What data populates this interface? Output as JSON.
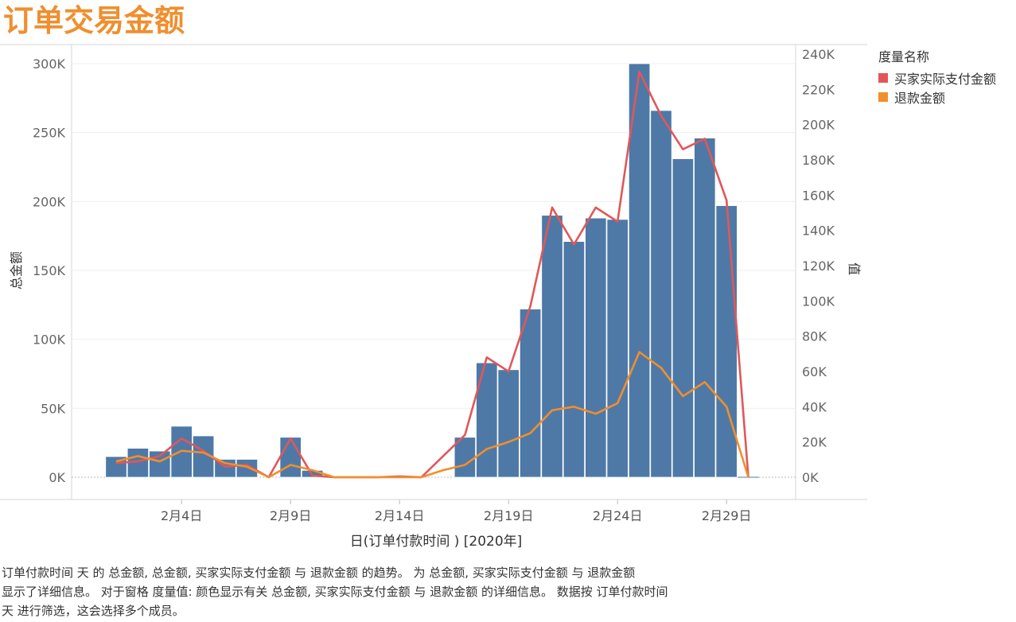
{
  "title": "订单交易金额",
  "chart_data": {
    "type": "bar+line",
    "title": "订单交易金额",
    "xlabel": "日(订单付款时间 ) [2020年]",
    "ylabel_left": "总金额",
    "ylabel_right": "值",
    "xticks": [
      {
        "day": 4,
        "label": "2月4日"
      },
      {
        "day": 9,
        "label": "2月9日"
      },
      {
        "day": 14,
        "label": "2月14日"
      },
      {
        "day": 19,
        "label": "2月19日"
      },
      {
        "day": 24,
        "label": "2月24日"
      },
      {
        "day": 29,
        "label": "2月29日"
      }
    ],
    "left_axis": {
      "min": 0,
      "max": 300000,
      "ticks": [
        0,
        50000,
        100000,
        150000,
        200000,
        250000,
        300000
      ],
      "tick_labels": [
        "0K",
        "50K",
        "100K",
        "150K",
        "200K",
        "250K",
        "300K"
      ]
    },
    "right_axis": {
      "min": 0,
      "max": 240000,
      "ticks": [
        0,
        20000,
        40000,
        60000,
        80000,
        100000,
        120000,
        140000,
        160000,
        180000,
        200000,
        220000,
        240000
      ],
      "tick_labels": [
        "0K",
        "20K",
        "40K",
        "60K",
        "80K",
        "100K",
        "120K",
        "140K",
        "160K",
        "180K",
        "200K",
        "220K",
        "240K"
      ]
    },
    "days": [
      1,
      2,
      3,
      4,
      5,
      6,
      7,
      8,
      9,
      10,
      11,
      12,
      13,
      14,
      15,
      16,
      17,
      18,
      19,
      20,
      21,
      22,
      23,
      24,
      25,
      26,
      27,
      28,
      29,
      30
    ],
    "bar_series": {
      "name": "总金额",
      "color": "#4e79a7",
      "values": [
        15000,
        21000,
        19000,
        37000,
        30000,
        13000,
        13000,
        0,
        29000,
        5000,
        0,
        0,
        0,
        0,
        0,
        0,
        29000,
        83000,
        78000,
        122000,
        190000,
        171000,
        188000,
        187000,
        300000,
        266000,
        231000,
        246000,
        197000,
        0
      ]
    },
    "line_series": [
      {
        "name": "买家实际支付金额",
        "color": "#e15759",
        "values": [
          8000,
          9000,
          12000,
          22000,
          15000,
          6000,
          7000,
          0,
          22000,
          1000,
          0,
          0,
          0,
          500,
          0,
          12000,
          24000,
          68000,
          60000,
          97000,
          153000,
          132000,
          153000,
          145000,
          230000,
          205000,
          186000,
          192000,
          157000,
          0
        ]
      },
      {
        "name": "退款金额",
        "color": "#f28e2b",
        "values": [
          9000,
          12000,
          9000,
          15000,
          14000,
          8000,
          6000,
          0,
          7000,
          4000,
          0,
          0,
          0,
          0,
          0,
          4000,
          7000,
          16000,
          20000,
          25000,
          38000,
          40000,
          36000,
          42000,
          71000,
          62000,
          46000,
          54000,
          40000,
          0
        ]
      }
    ]
  },
  "legend": {
    "title": "度量名称",
    "items": [
      {
        "label": "买家实际支付金额",
        "color": "#e15759"
      },
      {
        "label": "退款金额",
        "color": "#f28e2b"
      }
    ]
  },
  "caption": {
    "line1": "订单付款时间 天 的 总金额, 总金额, 买家实际支付金额 与 退款金额 的趋势。 为 总金额, 买家实际支付金额 与 退款金额",
    "line2": "显示了详细信息。 对于窗格 度量值: 颜色显示有关 总金额, 买家实际支付金额 与 退款金额 的详细信息。 数据按 订单付款时间",
    "line3": "天 进行筛选，这会选择多个成员。"
  }
}
